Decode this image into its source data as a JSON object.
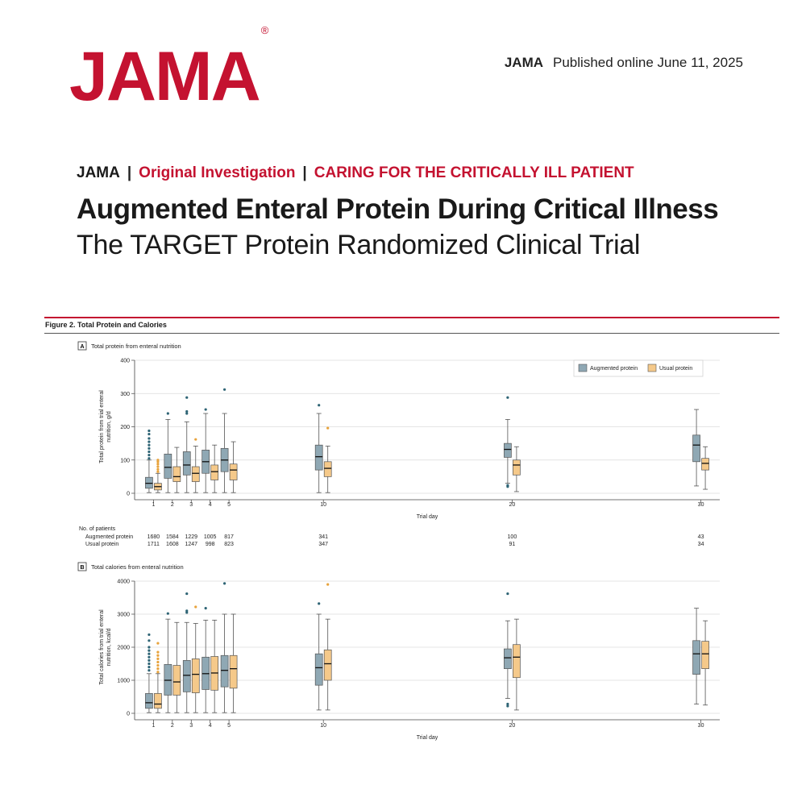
{
  "header": {
    "logo": "JAMA",
    "logo_mark": "®",
    "journal": "JAMA",
    "published": "Published online June  11, 2025",
    "kicker_journal": "JAMA",
    "kicker_section": "Original Investigation",
    "kicker_series": "CARING FOR THE CRITICALLY ILL PATIENT",
    "title": "Augmented Enteral Protein During Critical Illness",
    "subtitle": "The TARGET Protein Randomized Clinical Trial"
  },
  "figure": {
    "label": "Figure 2. Total Protein and Calories"
  },
  "colors": {
    "brand_red": "#c41230",
    "augmented": "#8fa8b4",
    "usual": "#f5c98a",
    "aug_outlier": "#2e6475",
    "usual_outlier": "#e8a33c"
  },
  "chart_data": [
    {
      "type": "box",
      "panel": "A",
      "title": "Total protein from enteral nutrition",
      "xlabel": "Trial day",
      "ylabel_lines": [
        "Total protein from trial enteral",
        "nutrition, g/d"
      ],
      "ylim": [
        0,
        400
      ],
      "yticks": [
        0,
        100,
        200,
        300,
        400
      ],
      "xlim": [
        0,
        31
      ],
      "x": [
        1,
        2,
        3,
        4,
        5,
        10,
        20,
        30
      ],
      "legend_position": "top-right",
      "legend": [
        "Augmented protein",
        "Usual protein"
      ],
      "series": [
        {
          "name": "Augmented protein",
          "boxes": [
            {
              "min": 2,
              "q1": 15,
              "median": 30,
              "q3": 48,
              "max": 100,
              "outliers": [
                105,
                115,
                125,
                135,
                145,
                155,
                165,
                178,
                188
              ]
            },
            {
              "min": 2,
              "q1": 45,
              "median": 78,
              "q3": 118,
              "max": 222,
              "outliers": [
                240
              ]
            },
            {
              "min": 2,
              "q1": 55,
              "median": 85,
              "q3": 125,
              "max": 215,
              "outliers": [
                240,
                246,
                288
              ]
            },
            {
              "min": 2,
              "q1": 60,
              "median": 95,
              "q3": 130,
              "max": 240,
              "outliers": [
                252
              ]
            },
            {
              "min": 2,
              "q1": 65,
              "median": 100,
              "q3": 135,
              "max": 240,
              "outliers": [
                312
              ]
            },
            {
              "min": 2,
              "q1": 70,
              "median": 110,
              "q3": 145,
              "max": 240,
              "outliers": [
                265
              ]
            },
            {
              "min": 30,
              "q1": 108,
              "median": 132,
              "q3": 150,
              "max": 222,
              "outliers": [
                20,
                24,
                288
              ]
            },
            {
              "min": 22,
              "q1": 95,
              "median": 145,
              "q3": 175,
              "max": 252,
              "outliers": []
            }
          ]
        },
        {
          "name": "Usual protein",
          "boxes": [
            {
              "min": 2,
              "q1": 10,
              "median": 20,
              "q3": 30,
              "max": 60,
              "outliers": [
                65,
                72,
                80,
                88,
                95,
                100
              ]
            },
            {
              "min": 2,
              "q1": 35,
              "median": 50,
              "q3": 80,
              "max": 138,
              "outliers": []
            },
            {
              "min": 2,
              "q1": 35,
              "median": 60,
              "q3": 80,
              "max": 142,
              "outliers": [
                162
              ]
            },
            {
              "min": 2,
              "q1": 40,
              "median": 65,
              "q3": 85,
              "max": 145,
              "outliers": []
            },
            {
              "min": 2,
              "q1": 40,
              "median": 70,
              "q3": 88,
              "max": 155,
              "outliers": []
            },
            {
              "min": 2,
              "q1": 50,
              "median": 75,
              "q3": 95,
              "max": 142,
              "outliers": [
                196
              ]
            },
            {
              "min": 5,
              "q1": 55,
              "median": 85,
              "q3": 100,
              "max": 140,
              "outliers": []
            },
            {
              "min": 12,
              "q1": 70,
              "median": 90,
              "q3": 105,
              "max": 140,
              "outliers": []
            }
          ]
        }
      ],
      "patients": {
        "heading": "No. of patients",
        "rows": [
          {
            "label": "Augmented protein",
            "values": [
              "1680",
              "1584",
              "1229",
              "1005",
              "817",
              "341",
              "100",
              "43"
            ]
          },
          {
            "label": "Usual protein",
            "values": [
              "1711",
              "1608",
              "1247",
              "998",
              "823",
              "347",
              "91",
              "34"
            ]
          }
        ]
      }
    },
    {
      "type": "box",
      "panel": "B",
      "title": "Total calories from enteral nutrition",
      "xlabel": "Trial day",
      "ylabel_lines": [
        "Total calories from trial enteral",
        "nutrition, kcal/d"
      ],
      "ylim": [
        0,
        4000
      ],
      "yticks": [
        0,
        1000,
        2000,
        3000,
        4000
      ],
      "xlim": [
        0,
        31
      ],
      "x": [
        1,
        2,
        3,
        4,
        5,
        10,
        20,
        30
      ],
      "series": [
        {
          "name": "Augmented protein",
          "boxes": [
            {
              "min": 20,
              "q1": 150,
              "median": 320,
              "q3": 600,
              "max": 1200,
              "outliers": [
                1300,
                1400,
                1500,
                1600,
                1700,
                1800,
                1900,
                2000,
                2200,
                2380
              ]
            },
            {
              "min": 20,
              "q1": 550,
              "median": 1000,
              "q3": 1480,
              "max": 2850,
              "outliers": [
                3020
              ]
            },
            {
              "min": 20,
              "q1": 650,
              "median": 1150,
              "q3": 1600,
              "max": 2750,
              "outliers": [
                3050,
                3100,
                3620
              ]
            },
            {
              "min": 20,
              "q1": 720,
              "median": 1200,
              "q3": 1700,
              "max": 2820,
              "outliers": [
                3180
              ]
            },
            {
              "min": 20,
              "q1": 800,
              "median": 1300,
              "q3": 1750,
              "max": 3000,
              "outliers": [
                3930
              ]
            },
            {
              "min": 100,
              "q1": 850,
              "median": 1380,
              "q3": 1800,
              "max": 3000,
              "outliers": [
                3320
              ]
            },
            {
              "min": 450,
              "q1": 1350,
              "median": 1680,
              "q3": 1950,
              "max": 2800,
              "outliers": [
                220,
                280,
                3620
              ]
            },
            {
              "min": 280,
              "q1": 1180,
              "median": 1800,
              "q3": 2200,
              "max": 3180,
              "outliers": []
            }
          ]
        },
        {
          "name": "Usual protein",
          "boxes": [
            {
              "min": 20,
              "q1": 150,
              "median": 280,
              "q3": 600,
              "max": 1200,
              "outliers": [
                1250,
                1350,
                1450,
                1550,
                1650,
                1750,
                1850,
                2120
              ]
            },
            {
              "min": 20,
              "q1": 550,
              "median": 950,
              "q3": 1450,
              "max": 2750,
              "outliers": []
            },
            {
              "min": 20,
              "q1": 620,
              "median": 1180,
              "q3": 1650,
              "max": 2720,
              "outliers": [
                3220
              ]
            },
            {
              "min": 20,
              "q1": 700,
              "median": 1220,
              "q3": 1720,
              "max": 2820,
              "outliers": []
            },
            {
              "min": 20,
              "q1": 760,
              "median": 1350,
              "q3": 1750,
              "max": 3000,
              "outliers": []
            },
            {
              "min": 100,
              "q1": 1000,
              "median": 1500,
              "q3": 1920,
              "max": 2850,
              "outliers": [
                3900
              ]
            },
            {
              "min": 100,
              "q1": 1080,
              "median": 1700,
              "q3": 2080,
              "max": 2850,
              "outliers": []
            },
            {
              "min": 250,
              "q1": 1350,
              "median": 1800,
              "q3": 2180,
              "max": 2800,
              "outliers": []
            }
          ]
        }
      ]
    }
  ]
}
